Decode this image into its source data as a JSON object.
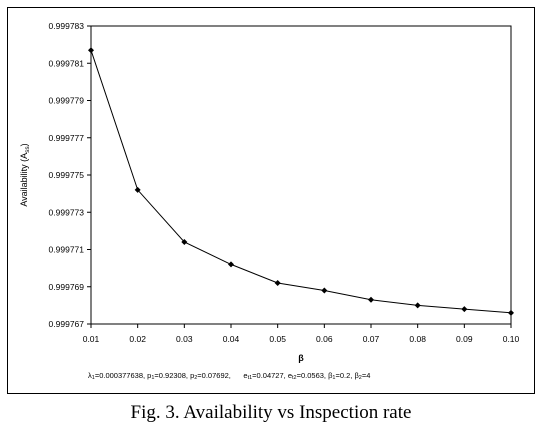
{
  "chart_data": {
    "type": "line",
    "title": "",
    "xlabel": "β",
    "ylabel": "Availability (A",
    "ylabel_sub": "ss",
    "ylabel_close": ")",
    "xlim": [
      0.01,
      0.1
    ],
    "ylim": [
      0.999767,
      0.999783
    ],
    "x_ticks": [
      "0.01",
      "0.02",
      "0.03",
      "0.04",
      "0.05",
      "0.06",
      "0.07",
      "0.08",
      "0.09",
      "0.10"
    ],
    "y_ticks": [
      "0.999767",
      "0.999769",
      "0.999771",
      "0.999773",
      "0.999775",
      "0.999777",
      "0.999779",
      "0.999781",
      "0.999783"
    ],
    "grid": false,
    "series": [
      {
        "x": [
          0.01,
          0.02,
          0.03,
          0.04,
          0.05,
          0.06,
          0.07,
          0.08,
          0.09,
          0.1
        ],
        "y": [
          0.9997817,
          0.9997742,
          0.9997714,
          0.9997702,
          0.9997692,
          0.9997688,
          0.9997683,
          0.999768,
          0.9997678,
          0.9997676
        ]
      }
    ],
    "params": {
      "l1_sym": "λ",
      "l1_sub": "1",
      "l1_val": "=0.000377638, ",
      "p1_sym": "p",
      "p1_sub": "1",
      "p1_val": "=0.92308, ",
      "p2_sym": "p",
      "p2_sub": "2",
      "p2_val": "=0.07692,",
      "e1_sym": "e",
      "e1_sub": "t1",
      "e1_val": "=0.04727, ",
      "e2_sym": "e",
      "e2_sub": "t2",
      "e2_val": "=0.0563, ",
      "b1_sym": "β",
      "b1_sub": "1",
      "b1_val": "=0.2, ",
      "b2_sym": "β",
      "b2_sub": "2",
      "b2_val": "=4"
    }
  },
  "caption": "Fig. 3. Availability vs Inspection rate"
}
